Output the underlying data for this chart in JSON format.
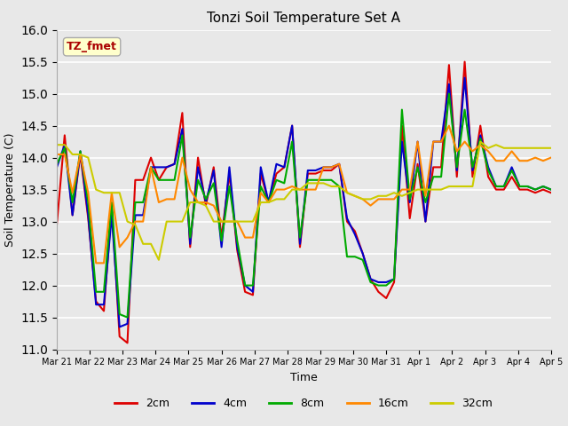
{
  "title": "Tonzi Soil Temperature Set A",
  "xlabel": "Time",
  "ylabel": "Soil Temperature (C)",
  "ylim": [
    11.0,
    16.0
  ],
  "yticks": [
    11.0,
    11.5,
    12.0,
    12.5,
    13.0,
    13.5,
    14.0,
    14.5,
    15.0,
    15.5,
    16.0
  ],
  "xtick_labels": [
    "Mar 21",
    "Mar 22",
    "Mar 23",
    "Mar 24",
    "Mar 25",
    "Mar 26",
    "Mar 27",
    "Mar 28",
    "Mar 29",
    "Mar 30",
    "Mar 31",
    "Apr 1",
    "Apr 2",
    "Apr 3",
    "Apr 4",
    "Apr 5"
  ],
  "annotation_text": "TZ_fmet",
  "annotation_color": "#aa0000",
  "annotation_bg": "#ffffcc",
  "plot_bg": "#e8e8e8",
  "fig_bg": "#e8e8e8",
  "series": [
    {
      "label": "2cm",
      "color": "#dd0000",
      "lw": 1.5,
      "y": [
        12.95,
        14.35,
        13.1,
        14.05,
        13.05,
        11.75,
        11.6,
        13.25,
        11.2,
        11.1,
        13.65,
        13.65,
        14.0,
        13.65,
        13.85,
        13.9,
        14.7,
        12.6,
        14.0,
        13.25,
        13.85,
        12.75,
        13.75,
        12.55,
        11.9,
        11.85,
        13.75,
        13.3,
        13.75,
        13.85,
        14.5,
        12.6,
        13.75,
        13.75,
        13.8,
        13.8,
        13.9,
        13.0,
        12.85,
        12.5,
        12.1,
        11.9,
        11.8,
        12.05,
        14.5,
        13.05,
        13.9,
        13.0,
        13.85,
        13.85,
        15.45,
        13.7,
        15.5,
        13.7,
        14.5,
        13.7,
        13.5,
        13.5,
        13.7,
        13.5,
        13.5,
        13.45,
        13.5,
        13.45
      ]
    },
    {
      "label": "4cm",
      "color": "#0000cc",
      "lw": 1.5,
      "y": [
        13.85,
        14.2,
        13.1,
        14.1,
        13.1,
        11.7,
        11.7,
        13.1,
        11.35,
        11.4,
        13.1,
        13.1,
        13.85,
        13.85,
        13.85,
        13.9,
        14.45,
        12.65,
        13.85,
        13.3,
        13.8,
        12.6,
        13.85,
        12.6,
        12.0,
        11.9,
        13.85,
        13.3,
        13.9,
        13.85,
        14.5,
        12.65,
        13.8,
        13.8,
        13.85,
        13.85,
        13.9,
        13.05,
        12.8,
        12.5,
        12.1,
        12.05,
        12.05,
        12.1,
        14.25,
        13.3,
        14.25,
        13.0,
        14.25,
        14.25,
        15.15,
        13.8,
        15.25,
        13.8,
        14.35,
        13.85,
        13.55,
        13.55,
        13.85,
        13.55,
        13.55,
        13.5,
        13.55,
        13.5
      ]
    },
    {
      "label": "8cm",
      "color": "#00aa00",
      "lw": 1.5,
      "y": [
        13.9,
        14.15,
        13.3,
        14.1,
        13.3,
        11.9,
        11.9,
        13.3,
        11.55,
        11.5,
        13.3,
        13.3,
        13.85,
        13.65,
        13.65,
        13.65,
        14.35,
        12.75,
        13.65,
        13.35,
        13.6,
        12.7,
        13.55,
        12.7,
        12.0,
        12.0,
        13.55,
        13.3,
        13.65,
        13.6,
        14.25,
        12.75,
        13.65,
        13.65,
        13.65,
        13.65,
        13.55,
        12.45,
        12.45,
        12.4,
        12.05,
        12.0,
        12.0,
        12.1,
        14.75,
        13.35,
        13.85,
        13.3,
        13.7,
        13.7,
        15.0,
        13.85,
        14.75,
        13.85,
        14.3,
        13.8,
        13.55,
        13.55,
        13.8,
        13.55,
        13.55,
        13.5,
        13.55,
        13.5
      ]
    },
    {
      "label": "16cm",
      "color": "#ff8800",
      "lw": 1.5,
      "y": [
        14.05,
        14.05,
        13.45,
        14.05,
        13.45,
        12.35,
        12.35,
        13.45,
        12.6,
        12.75,
        13.0,
        13.0,
        13.85,
        13.3,
        13.35,
        13.35,
        14.0,
        13.5,
        13.3,
        13.3,
        13.25,
        13.0,
        13.0,
        13.0,
        12.75,
        12.75,
        13.45,
        13.3,
        13.5,
        13.5,
        13.55,
        13.5,
        13.5,
        13.5,
        13.85,
        13.85,
        13.9,
        13.45,
        13.4,
        13.35,
        13.25,
        13.35,
        13.35,
        13.35,
        13.5,
        13.5,
        14.25,
        13.4,
        14.25,
        14.25,
        14.5,
        14.1,
        14.25,
        14.1,
        14.2,
        14.1,
        13.95,
        13.95,
        14.1,
        13.95,
        13.95,
        14.0,
        13.95,
        14.0
      ]
    },
    {
      "label": "32cm",
      "color": "#cccc00",
      "lw": 1.5,
      "y": [
        14.2,
        14.2,
        14.05,
        14.05,
        14.0,
        13.5,
        13.45,
        13.45,
        13.45,
        13.0,
        12.95,
        12.65,
        12.65,
        12.4,
        13.0,
        13.0,
        13.0,
        13.3,
        13.3,
        13.25,
        13.0,
        13.0,
        13.0,
        13.0,
        13.0,
        13.0,
        13.3,
        13.3,
        13.35,
        13.35,
        13.5,
        13.5,
        13.6,
        13.6,
        13.6,
        13.55,
        13.55,
        13.45,
        13.4,
        13.35,
        13.35,
        13.4,
        13.4,
        13.45,
        13.4,
        13.45,
        13.5,
        13.5,
        13.5,
        13.5,
        13.55,
        13.55,
        13.55,
        13.55,
        14.25,
        14.15,
        14.2,
        14.15,
        14.15,
        14.15,
        14.15,
        14.15,
        14.15,
        14.15
      ]
    }
  ]
}
